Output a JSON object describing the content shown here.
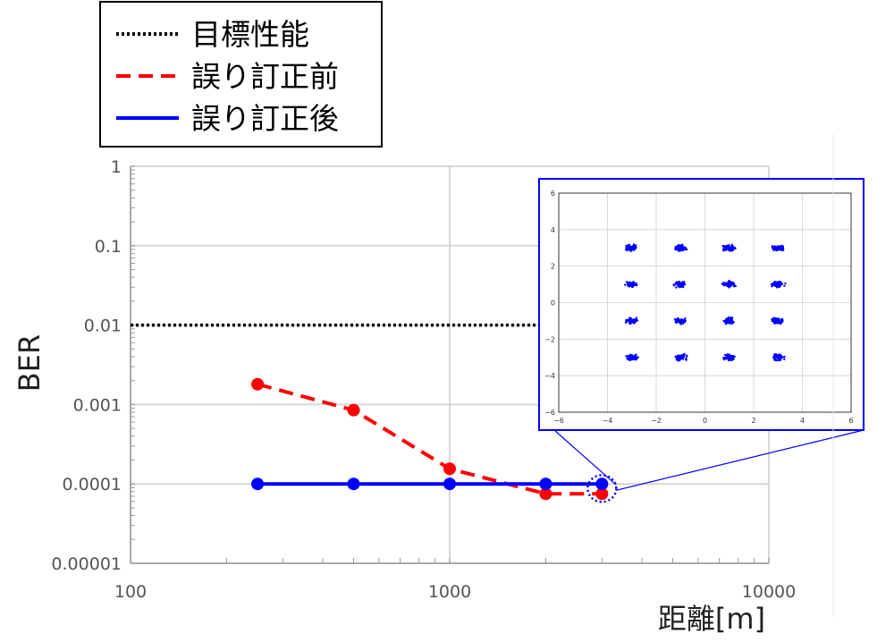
{
  "chart_data": [
    {
      "type": "line",
      "title": "",
      "xlabel": "距離[m]",
      "ylabel": "BER",
      "xscale": "log",
      "yscale": "log",
      "xlim": [
        100,
        10000
      ],
      "ylim": [
        1e-05,
        1
      ],
      "x_tick_labels": [
        "100",
        "1000",
        "10000"
      ],
      "y_tick_labels": [
        "1",
        "0.1",
        "0.01",
        "0.001",
        "0.0001",
        "0.00001"
      ],
      "grid": true,
      "legend_position": "top-left",
      "series": [
        {
          "name": "目標性能",
          "style": "dotted",
          "color": "#000000",
          "x": [
            100,
            1950
          ],
          "y": [
            0.01,
            0.01
          ]
        },
        {
          "name": "誤り訂正前",
          "style": "dashed",
          "color": "#ff0000",
          "x": [
            250,
            500,
            1000,
            2000,
            3000
          ],
          "y": [
            0.0018,
            0.00085,
            0.000155,
            7.5e-05,
            7.5e-05
          ]
        },
        {
          "name": "誤り訂正後",
          "style": "solid",
          "color": "#0000ff",
          "x": [
            250,
            500,
            1000,
            2000,
            3000
          ],
          "y": [
            0.0001,
            0.0001,
            0.0001,
            0.0001,
            0.0001
          ]
        }
      ]
    },
    {
      "type": "scatter",
      "title": "",
      "description": "16QAM constellation inset (zoom of point at 3000 m)",
      "xlim": [
        -6,
        6
      ],
      "ylim": [
        -6,
        6
      ],
      "x_tick_labels": [
        "−6",
        "−4",
        "−2",
        "0",
        "2",
        "4",
        "6"
      ],
      "y_tick_labels": [
        "6",
        "4",
        "2",
        "0",
        "−2",
        "−4",
        "−6"
      ],
      "grid": true,
      "color": "#0000ff",
      "clusters": [
        [
          -3,
          3
        ],
        [
          -1,
          3
        ],
        [
          1,
          3
        ],
        [
          3,
          3
        ],
        [
          -3,
          1
        ],
        [
          -1,
          1
        ],
        [
          1,
          1
        ],
        [
          3,
          1
        ],
        [
          -3,
          -1
        ],
        [
          -1,
          -1
        ],
        [
          1,
          -1
        ],
        [
          3,
          -1
        ],
        [
          -3,
          -3
        ],
        [
          -1,
          -3
        ],
        [
          1,
          -3
        ],
        [
          3,
          -3
        ]
      ]
    }
  ]
}
